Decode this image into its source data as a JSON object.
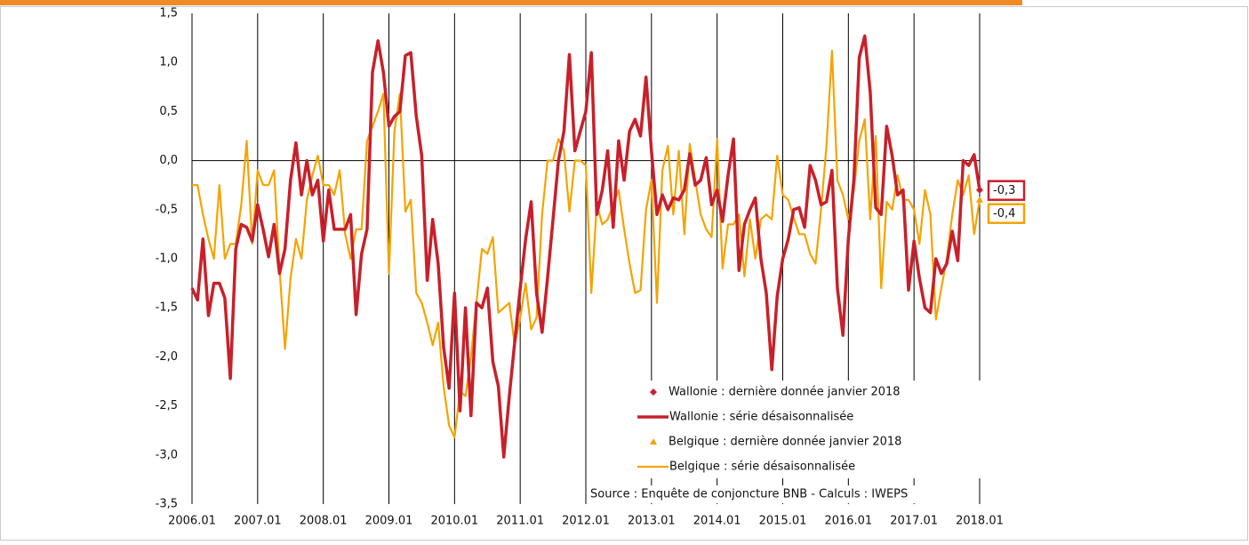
{
  "chart_data": {
    "type": "line",
    "categories": [
      "2006.01",
      null,
      null,
      null,
      null,
      null,
      null,
      null,
      null,
      null,
      null,
      null,
      "2007.01",
      null,
      null,
      null,
      null,
      null,
      null,
      null,
      null,
      null,
      null,
      null,
      "2008.01",
      null,
      null,
      null,
      null,
      null,
      null,
      null,
      null,
      null,
      null,
      null,
      "2009.01",
      null,
      null,
      null,
      null,
      null,
      null,
      null,
      null,
      null,
      null,
      null,
      "2010.01",
      null,
      null,
      null,
      null,
      null,
      null,
      null,
      null,
      null,
      null,
      null,
      "2011.01",
      null,
      null,
      null,
      null,
      null,
      null,
      null,
      null,
      null,
      null,
      null,
      "2012.01",
      null,
      null,
      null,
      null,
      null,
      null,
      null,
      null,
      null,
      null,
      null,
      "2013.01",
      null,
      null,
      null,
      null,
      null,
      null,
      null,
      null,
      null,
      null,
      null,
      "2014.01",
      null,
      null,
      null,
      null,
      null,
      null,
      null,
      null,
      null,
      null,
      null,
      "2015.01",
      null,
      null,
      null,
      null,
      null,
      null,
      null,
      null,
      null,
      null,
      null,
      "2016.01",
      null,
      null,
      null,
      null,
      null,
      null,
      null,
      null,
      null,
      null,
      null,
      "2017.01",
      null,
      null,
      null,
      null,
      null,
      null,
      null,
      null,
      null,
      null,
      null,
      "2018.01"
    ],
    "series": [
      {
        "name": "Wallonie : dernière donnée janvier 2018",
        "color": "#c8202a",
        "marker": "diamond",
        "x": [
          "2018.01"
        ],
        "values": [
          -0.3
        ],
        "value_labels": [
          "-0,3"
        ]
      },
      {
        "name": "Wallonie : série désaisonnalisée",
        "color": "#c8202a",
        "values": [
          -1.3,
          -1.42,
          -0.8,
          -1.58,
          -1.25,
          -1.25,
          -1.4,
          -2.22,
          -0.9,
          -0.65,
          -0.68,
          -0.82,
          -0.45,
          -0.7,
          -0.98,
          -0.65,
          -1.15,
          -0.9,
          -0.2,
          0.18,
          -0.35,
          0.0,
          -0.35,
          -0.2,
          -0.82,
          -0.3,
          -0.7,
          -0.7,
          -0.7,
          -0.55,
          -1.57,
          -0.95,
          -0.7,
          0.9,
          1.22,
          0.9,
          0.35,
          0.45,
          0.5,
          1.07,
          1.1,
          0.45,
          0.05,
          -1.22,
          -0.6,
          -1.05,
          -1.9,
          -2.32,
          -1.35,
          -2.55,
          -1.5,
          -2.6,
          -1.45,
          -1.5,
          -1.3,
          -2.05,
          -2.3,
          -3.02,
          -2.4,
          -1.85,
          -1.3,
          -0.8,
          -0.42,
          -1.35,
          -1.75,
          -1.2,
          -0.6,
          0.0,
          0.3,
          1.08,
          0.1,
          0.3,
          0.5,
          1.1,
          -0.55,
          -0.3,
          0.1,
          -0.68,
          0.2,
          -0.2,
          0.3,
          0.42,
          0.25,
          0.85,
          0.1,
          -0.55,
          -0.35,
          -0.5,
          -0.38,
          -0.4,
          -0.3,
          0.07,
          -0.25,
          -0.2,
          0.03,
          -0.45,
          -0.3,
          -0.62,
          -0.15,
          0.22,
          -1.12,
          -0.65,
          -0.5,
          -0.38,
          -1.0,
          -1.35,
          -2.13,
          -1.38,
          -1.0,
          -0.8,
          -0.5,
          -0.48,
          -0.68,
          -0.05,
          -0.2,
          -0.45,
          -0.42,
          -0.1,
          -1.3,
          -1.78,
          -0.8,
          -0.2,
          1.05,
          1.27,
          0.7,
          -0.48,
          -0.55,
          0.35,
          0.05,
          -0.35,
          -0.3,
          -1.32,
          -0.82,
          -1.2,
          -1.5,
          -1.55,
          -1.0,
          -1.15,
          -1.05,
          -0.72,
          -1.02,
          0.0,
          -0.05,
          0.06,
          -0.3
        ]
      },
      {
        "name": "Belgique : dernière donnée janvier 2018",
        "color": "#f5a300",
        "marker": "triangle",
        "x": [
          "2018.01"
        ],
        "values": [
          -0.4
        ],
        "value_labels": [
          "-0,4"
        ]
      },
      {
        "name": "Belgique : série désaisonnalisée",
        "color": "#f5a300",
        "values": [
          -0.25,
          -0.25,
          -0.55,
          -0.8,
          -1.0,
          -0.25,
          -1.0,
          -0.85,
          -0.85,
          -0.45,
          0.2,
          -0.85,
          -0.1,
          -0.25,
          -0.25,
          -0.1,
          -1.1,
          -1.92,
          -1.2,
          -0.8,
          -1.0,
          -0.4,
          -0.15,
          0.05,
          -0.25,
          -0.25,
          -0.35,
          -0.1,
          -0.75,
          -1.0,
          -0.7,
          -0.7,
          0.2,
          0.35,
          0.5,
          0.68,
          -1.15,
          0.3,
          0.68,
          -0.52,
          -0.4,
          -1.35,
          -1.45,
          -1.65,
          -1.88,
          -1.65,
          -2.3,
          -2.7,
          -2.82,
          -2.35,
          -2.4,
          -2.0,
          -1.45,
          -0.9,
          -0.95,
          -0.78,
          -1.55,
          -1.5,
          -1.45,
          -1.88,
          -1.6,
          -1.25,
          -1.72,
          -1.6,
          -0.55,
          0.0,
          0.0,
          0.22,
          0.1,
          -0.52,
          0.0,
          0.0,
          -0.05,
          -1.35,
          -0.45,
          -0.65,
          -0.6,
          -0.45,
          -0.3,
          -0.7,
          -1.05,
          -1.35,
          -1.32,
          -0.5,
          -0.2,
          -1.45,
          -0.1,
          0.15,
          -0.55,
          0.1,
          -0.75,
          0.17,
          -0.2,
          -0.55,
          -0.7,
          -0.78,
          0.22,
          -1.1,
          -0.65,
          -0.65,
          -0.55,
          -1.18,
          -0.6,
          -1.0,
          -0.6,
          -0.55,
          -0.6,
          0.05,
          -0.35,
          -0.4,
          -0.58,
          -0.75,
          -0.75,
          -0.95,
          -1.05,
          -0.5,
          0.15,
          1.12,
          -0.2,
          -0.35,
          -0.6,
          -0.3,
          0.2,
          0.42,
          -0.6,
          0.25,
          -1.3,
          -0.42,
          -0.5,
          -0.15,
          -0.4,
          -0.4,
          -0.5,
          -0.85,
          -0.3,
          -0.55,
          -1.62,
          -1.3,
          -1.0,
          -0.55,
          -0.2,
          -0.35,
          -0.15,
          -0.75,
          -0.4
        ]
      }
    ],
    "ylim": [
      -3.5,
      1.5
    ],
    "yticks": [
      {
        "value": -3.5,
        "label": "-3,5"
      },
      {
        "value": -3.0,
        "label": "-3,0"
      },
      {
        "value": -2.5,
        "label": "-2,5"
      },
      {
        "value": -2.0,
        "label": "-2,0"
      },
      {
        "value": -1.5,
        "label": "-1,5"
      },
      {
        "value": -1.0,
        "label": "-1,0"
      },
      {
        "value": -0.5,
        "label": "-0,5"
      },
      {
        "value": 0,
        "label": "0,0"
      },
      {
        "value": 0.5,
        "label": "0,5"
      },
      {
        "value": 1.0,
        "label": "1,0"
      },
      {
        "value": 1.5,
        "label": "1,5"
      }
    ],
    "source": "Source : Enquête de conjoncture BNB - Calculs : IWEPS"
  }
}
